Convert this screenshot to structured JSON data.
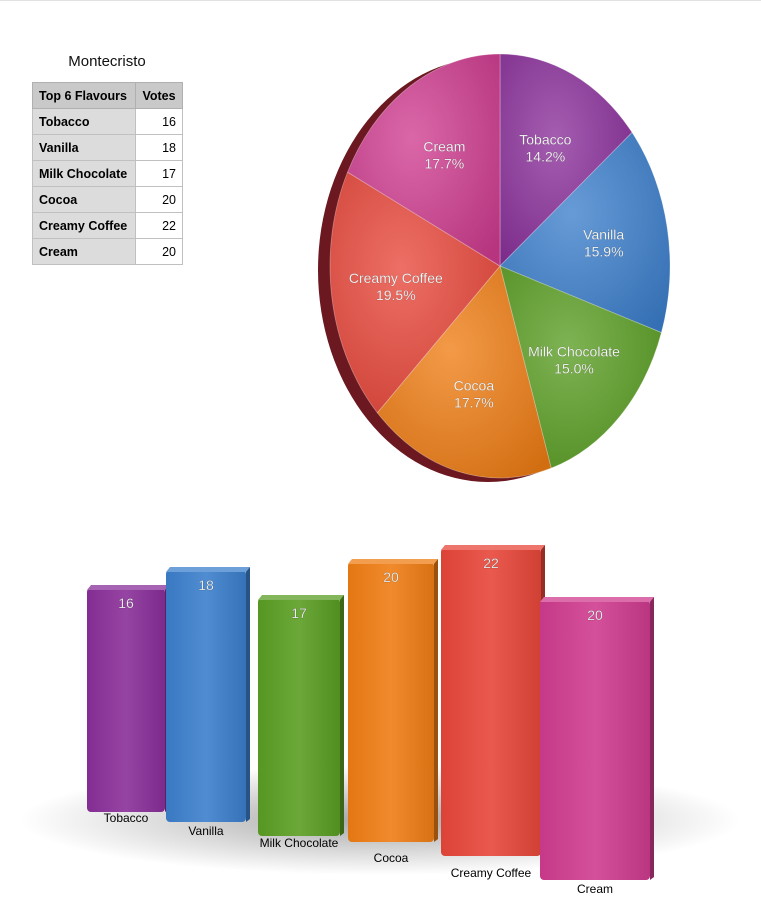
{
  "table": {
    "title": "Montecristo",
    "headers": [
      "Top 6 Flavours",
      "Votes"
    ],
    "rows": [
      {
        "name": "Tobacco",
        "votes": "16"
      },
      {
        "name": "Vanilla",
        "votes": "18"
      },
      {
        "name": "Milk Chocolate",
        "votes": "17"
      },
      {
        "name": "Cocoa",
        "votes": "20"
      },
      {
        "name": "Creamy Coffee",
        "votes": "22"
      },
      {
        "name": "Cream",
        "votes": "20"
      }
    ]
  },
  "colors": [
    "#8a2f9a",
    "#3c7fcc",
    "#5a9e23",
    "#ef7d14",
    "#e8473a",
    "#cf3c8f"
  ],
  "chart_data": [
    {
      "type": "pie",
      "categories": [
        "Tobacco",
        "Vanilla",
        "Milk Chocolate",
        "Cocoa",
        "Creamy Coffee",
        "Cream"
      ],
      "values": [
        16,
        18,
        17,
        20,
        22,
        20
      ],
      "percent_labels": [
        "14.2%",
        "15.9%",
        "15.0%",
        "17.7%",
        "19.5%",
        "17.7%"
      ],
      "style": "3d"
    },
    {
      "type": "bar",
      "categories": [
        "Tobacco",
        "Vanilla",
        "Milk Chocolate",
        "Cocoa",
        "Creamy Coffee",
        "Cream"
      ],
      "values": [
        16,
        18,
        17,
        20,
        22,
        20
      ],
      "data_labels": [
        "16",
        "18",
        "17",
        "20",
        "22",
        "20"
      ],
      "style": "3d"
    }
  ]
}
